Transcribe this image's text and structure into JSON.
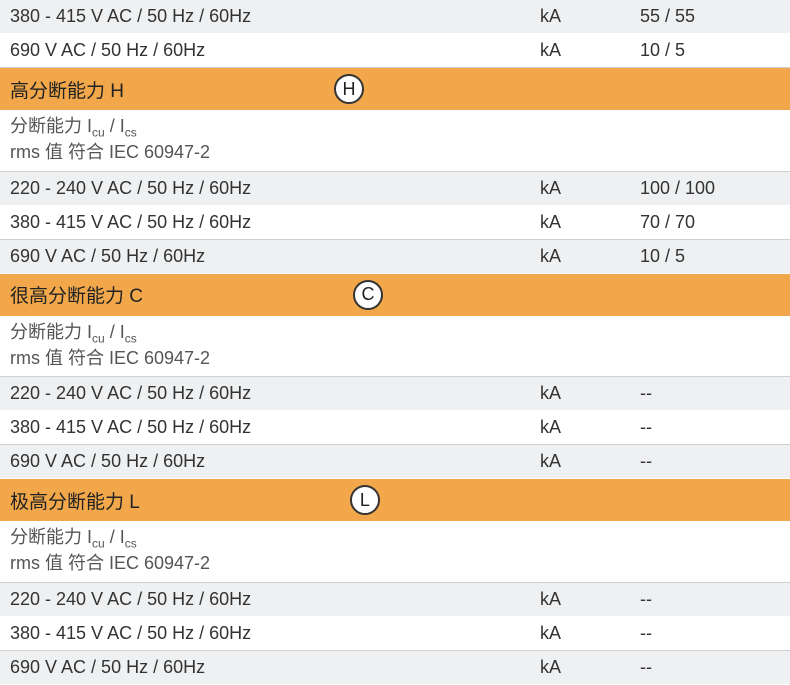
{
  "colors": {
    "header_bg": "#f2a84a",
    "row_even_bg": "#eef0f2",
    "row_odd_bg": "#ffffff",
    "text": "#333333",
    "border": "#d0d0d0"
  },
  "top_rows": [
    {
      "label": "380 - 415 V AC / 50 Hz / 60Hz",
      "unit": "kA",
      "value": "55 / 55",
      "bg": "light"
    },
    {
      "label": "690 V AC / 50 Hz / 60Hz",
      "unit": "kA",
      "value": "10 / 5",
      "bg": "white"
    }
  ],
  "sections": [
    {
      "title": "高分断能力 H",
      "badge": "H",
      "subheader_line1": "分断能力 I",
      "subheader_cu": "cu",
      "subheader_slash": " / I",
      "subheader_cs": "cs",
      "subheader_line2": "rms 值 符合 IEC 60947-2",
      "rows": [
        {
          "label": "220 - 240 V AC / 50 Hz / 60Hz",
          "unit": "kA",
          "value": "100 / 100",
          "bg": "light"
        },
        {
          "label": "380 - 415 V AC / 50 Hz / 60Hz",
          "unit": "kA",
          "value": "70 / 70",
          "bg": "white"
        },
        {
          "label": "690 V AC / 50 Hz / 60Hz",
          "unit": "kA",
          "value": "10 / 5",
          "bg": "light"
        }
      ]
    },
    {
      "title": "很高分断能力 C",
      "badge": "C",
      "subheader_line1": "分断能力 I",
      "subheader_cu": "cu",
      "subheader_slash": " / I",
      "subheader_cs": "cs",
      "subheader_line2": "rms 值 符合 IEC 60947-2",
      "rows": [
        {
          "label": "220 - 240 V AC / 50 Hz / 60Hz",
          "unit": "kA",
          "value": "--",
          "bg": "light"
        },
        {
          "label": "380 - 415 V AC / 50 Hz / 60Hz",
          "unit": "kA",
          "value": "--",
          "bg": "white"
        },
        {
          "label": "690 V AC / 50 Hz / 60Hz",
          "unit": "kA",
          "value": "--",
          "bg": "light"
        }
      ]
    },
    {
      "title": "极高分断能力 L",
      "badge": "L",
      "subheader_line1": "分断能力 I",
      "subheader_cu": "cu",
      "subheader_slash": " / I",
      "subheader_cs": "cs",
      "subheader_line2": "rms 值 符合 IEC 60947-2",
      "rows": [
        {
          "label": "220 - 240 V AC / 50 Hz / 60Hz",
          "unit": "kA",
          "value": "--",
          "bg": "light"
        },
        {
          "label": "380 - 415 V AC / 50 Hz / 60Hz",
          "unit": "kA",
          "value": "--",
          "bg": "white"
        },
        {
          "label": "690 V AC / 50 Hz / 60Hz",
          "unit": "kA",
          "value": "--",
          "bg": "light"
        }
      ]
    }
  ]
}
